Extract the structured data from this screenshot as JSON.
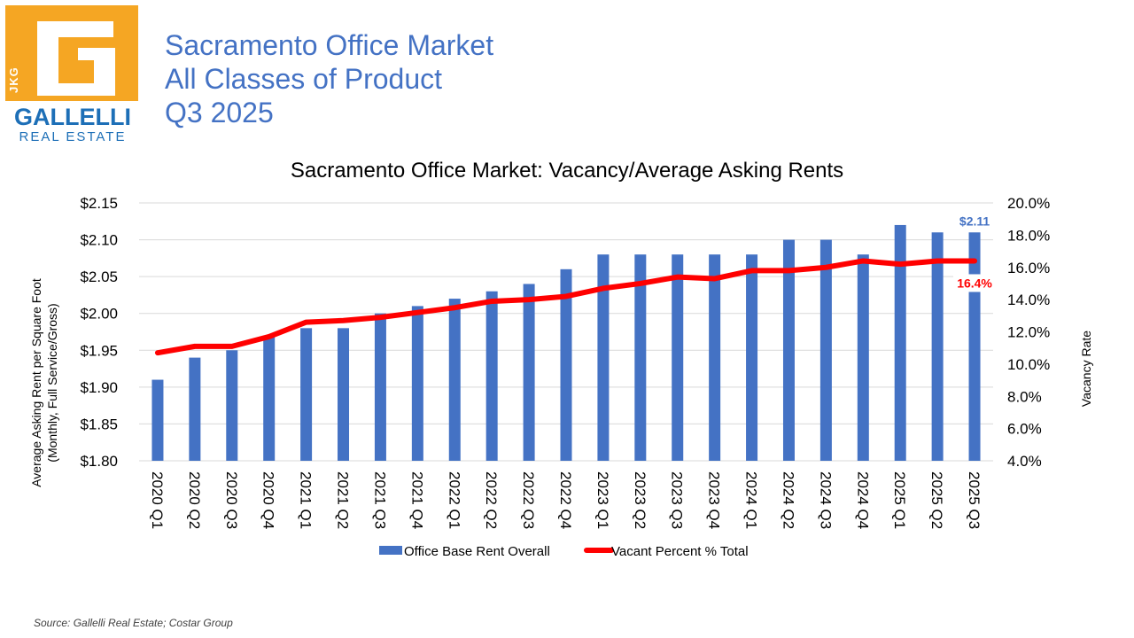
{
  "header": {
    "logo": {
      "letters": "JKG",
      "name": "GALLELLI",
      "tagline": "REAL ESTATE",
      "accent_color": "#f5a623",
      "brand_color": "#1d6fb7"
    },
    "title_lines": [
      "Sacramento Office Market",
      "All Classes of Product",
      "Q3 2025"
    ],
    "title_color": "#4472c4"
  },
  "footer": {
    "source": "Source: Gallelli Real Estate; Costar Group"
  },
  "chart_data": {
    "type": "bar",
    "title": "Sacramento Office Market: Vacancy/Average Asking Rents",
    "ylabel_lines": [
      "Average Asking Rent per Square Foot",
      "(Monthly, Full Service/Gross)"
    ],
    "y2label": "Vacancy Rate",
    "categories": [
      "2020 Q1",
      "2020 Q2",
      "2020 Q3",
      "2020 Q4",
      "2021 Q1",
      "2021 Q2",
      "2021 Q3",
      "2021 Q4",
      "2022 Q1",
      "2022 Q2",
      "2022 Q3",
      "2022 Q4",
      "2023 Q1",
      "2023 Q2",
      "2023 Q3",
      "2023 Q4",
      "2024 Q1",
      "2024 Q2",
      "2024 Q3",
      "2024 Q4",
      "2025 Q1",
      "2025 Q2",
      "2025 Q3"
    ],
    "ylim": [
      1.8,
      2.15
    ],
    "y_ticks": [
      "$1.80",
      "$1.85",
      "$1.90",
      "$1.95",
      "$2.00",
      "$2.05",
      "$2.10",
      "$2.15"
    ],
    "y2lim": [
      4.0,
      20.0
    ],
    "y2_ticks": [
      "4.0%",
      "6.0%",
      "8.0%",
      "10.0%",
      "12.0%",
      "14.0%",
      "16.0%",
      "18.0%",
      "20.0%"
    ],
    "grid": true,
    "legend_position": "bottom",
    "series": [
      {
        "name": "Office Base Rent Overall",
        "type": "bar",
        "axis": "left",
        "color": "#4472c4",
        "values": [
          1.91,
          1.94,
          1.95,
          1.97,
          1.98,
          1.98,
          2.0,
          2.01,
          2.02,
          2.03,
          2.04,
          2.06,
          2.08,
          2.08,
          2.08,
          2.08,
          2.08,
          2.1,
          2.1,
          2.08,
          2.12,
          2.11,
          2.11
        ]
      },
      {
        "name": "Vacant Percent % Total",
        "type": "line",
        "axis": "right",
        "color": "#ff0000",
        "values": [
          10.7,
          11.1,
          11.1,
          11.7,
          12.6,
          12.7,
          12.9,
          13.2,
          13.5,
          13.9,
          14.0,
          14.2,
          14.7,
          15.0,
          15.4,
          15.3,
          15.8,
          15.8,
          16.0,
          16.4,
          16.2,
          16.4,
          16.4
        ]
      }
    ],
    "annotations": [
      {
        "text": "$2.11",
        "series": 0,
        "index": 22
      },
      {
        "text": "16.4%",
        "series": 1,
        "index": 22
      }
    ]
  }
}
